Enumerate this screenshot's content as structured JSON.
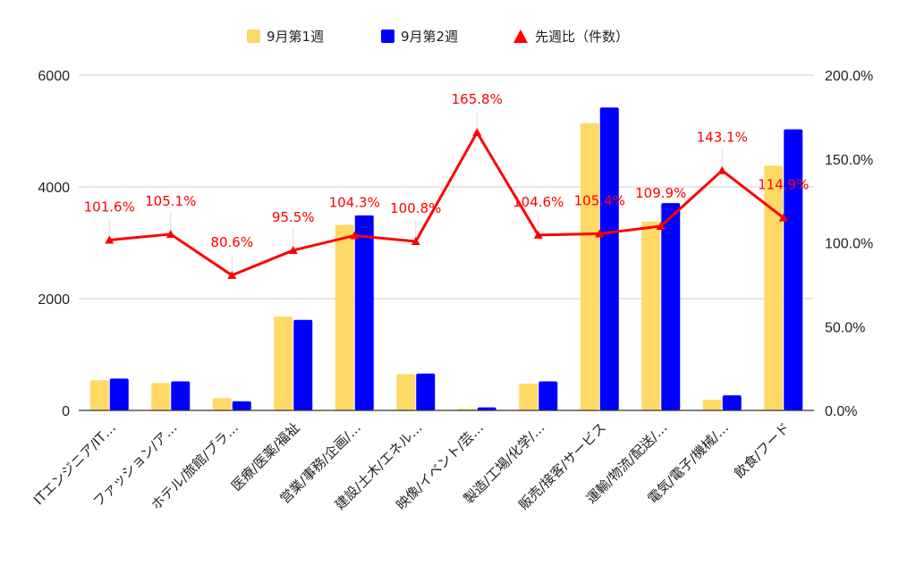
{
  "chart_data": {
    "type": "bar",
    "categories": [
      "ITエンジニア/IT…",
      "ファッション/ア…",
      "ホテル/旅館/ブラ…",
      "医療/医薬/福祉",
      "営業/事務/企画/…",
      "建設/土木/エネル…",
      "映像/イベント/芸…",
      "製造/工場/化学/…",
      "販売/接客/サービス",
      "運輸/物流/配送/…",
      "電気/電子/機械/…",
      "飲食/フード"
    ],
    "series": [
      {
        "name": "9月第1週",
        "type": "bar",
        "axis": "left",
        "color": "#ffd966",
        "values": [
          540,
          490,
          220,
          1680,
          3320,
          650,
          30,
          480,
          5140,
          3380,
          190,
          4380
        ]
      },
      {
        "name": "9月第2週",
        "type": "bar",
        "axis": "left",
        "color": "#0000ff",
        "values": [
          570,
          520,
          165,
          1620,
          3490,
          660,
          55,
          520,
          5420,
          3710,
          270,
          5030
        ]
      },
      {
        "name": "先週比（件数）",
        "type": "line",
        "axis": "right",
        "color": "#ff0000",
        "values": [
          101.6,
          105.1,
          80.6,
          95.5,
          104.3,
          100.8,
          165.8,
          104.6,
          105.4,
          109.9,
          143.1,
          114.9
        ],
        "labels": [
          "101.6%",
          "105.1%",
          "80.6%",
          "95.5%",
          "104.3%",
          "100.8%",
          "165.8%",
          "104.6%",
          "105.4%",
          "109.9%",
          "143.1%",
          "114.9%"
        ]
      }
    ],
    "y_left": {
      "min": 0,
      "max": 6000,
      "ticks": [
        "0",
        "2000",
        "4000",
        "6000"
      ],
      "tick_values": [
        0,
        2000,
        4000,
        6000
      ]
    },
    "y_right": {
      "min": 0,
      "max": 200,
      "ticks": [
        "0.0%",
        "50.0%",
        "100.0%",
        "150.0%",
        "200.0%"
      ],
      "tick_values": [
        0,
        50,
        100,
        150,
        200
      ]
    },
    "grid": true,
    "legend_position": "top-center"
  }
}
